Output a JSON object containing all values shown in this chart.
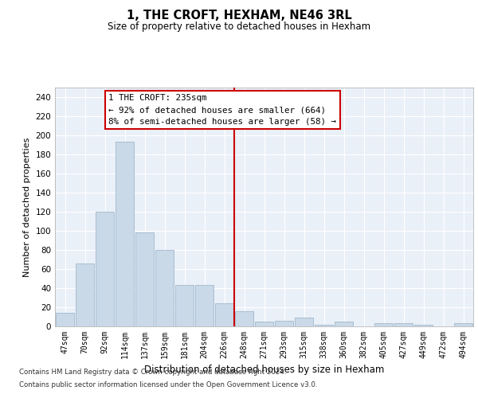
{
  "title": "1, THE CROFT, HEXHAM, NE46 3RL",
  "subtitle": "Size of property relative to detached houses in Hexham",
  "xlabel": "Distribution of detached houses by size in Hexham",
  "ylabel": "Number of detached properties",
  "bar_labels": [
    "47sqm",
    "70sqm",
    "92sqm",
    "114sqm",
    "137sqm",
    "159sqm",
    "181sqm",
    "204sqm",
    "226sqm",
    "248sqm",
    "271sqm",
    "293sqm",
    "315sqm",
    "338sqm",
    "360sqm",
    "382sqm",
    "405sqm",
    "427sqm",
    "449sqm",
    "472sqm",
    "494sqm"
  ],
  "bar_values": [
    14,
    66,
    120,
    193,
    98,
    80,
    43,
    43,
    24,
    16,
    5,
    6,
    9,
    2,
    5,
    0,
    3,
    3,
    2,
    0,
    3
  ],
  "bar_color": "#c9d9e8",
  "bar_edgecolor": "#a0b8cc",
  "vline_x": 8.5,
  "vline_color": "#cc0000",
  "annotation_text": "1 THE CROFT: 235sqm\n← 92% of detached houses are smaller (664)\n8% of semi-detached houses are larger (58) →",
  "annotation_box_color": "#ffffff",
  "annotation_box_edgecolor": "#cc0000",
  "ylim": [
    0,
    250
  ],
  "yticks": [
    0,
    20,
    40,
    60,
    80,
    100,
    120,
    140,
    160,
    180,
    200,
    220,
    240
  ],
  "bg_color": "#eaf0f8",
  "footer_line1": "Contains HM Land Registry data © Crown copyright and database right 2024.",
  "footer_line2": "Contains public sector information licensed under the Open Government Licence v3.0."
}
